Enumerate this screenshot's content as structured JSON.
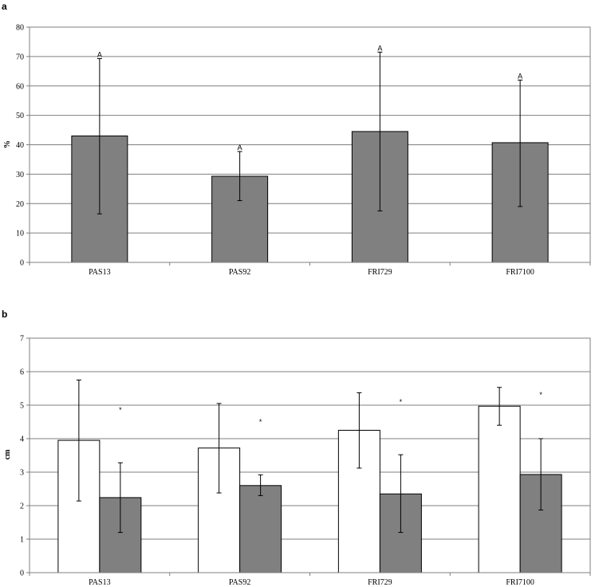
{
  "chart_data": [
    {
      "type": "bar",
      "panel_label": "a",
      "ylabel": "%",
      "ylim": [
        0,
        80
      ],
      "yticks": [
        0,
        10,
        20,
        30,
        40,
        50,
        60,
        70,
        80
      ],
      "grid": true,
      "categories": [
        "PAS13",
        "PAS92",
        "FRI729",
        "FRI7100"
      ],
      "series": [
        {
          "color": "#808080",
          "values": [
            43,
            29.3,
            44.5,
            40.7
          ],
          "error_low": [
            16.5,
            21,
            17.5,
            19
          ],
          "error_high": [
            69.3,
            37.7,
            71.5,
            62
          ],
          "annotations": [
            "A",
            "A",
            "A",
            "A"
          ]
        }
      ]
    },
    {
      "type": "bar",
      "panel_label": "b",
      "ylabel": "cm",
      "ylim": [
        0,
        7
      ],
      "yticks": [
        0,
        1,
        2,
        3,
        4,
        5,
        6,
        7
      ],
      "grid": true,
      "categories": [
        "PAS13",
        "PAS92",
        "FRI729",
        "FRI7100"
      ],
      "series": [
        {
          "color": "#ffffff",
          "values": [
            3.95,
            3.72,
            4.25,
            4.97
          ],
          "error_low": [
            2.14,
            2.38,
            3.12,
            4.4
          ],
          "error_high": [
            5.75,
            5.05,
            5.37,
            5.53
          ]
        },
        {
          "color": "#808080",
          "values": [
            2.24,
            2.6,
            2.35,
            2.93
          ],
          "error_low": [
            1.2,
            2.3,
            1.2,
            1.87
          ],
          "error_high": [
            3.28,
            2.92,
            3.52,
            4.0
          ]
        }
      ],
      "annotations": [
        "*",
        "*",
        "*",
        "*"
      ]
    }
  ]
}
